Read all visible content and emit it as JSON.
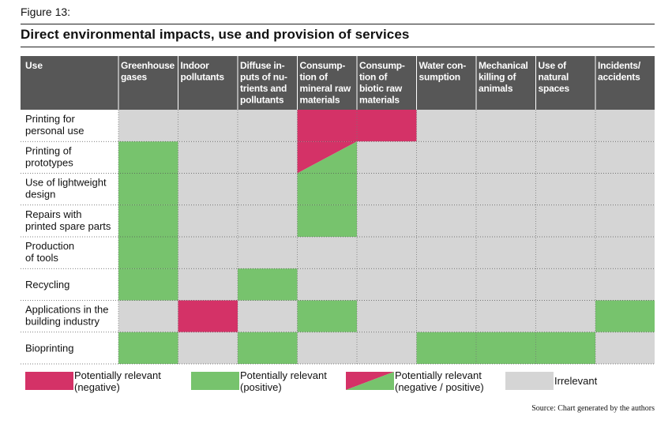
{
  "figure_label": "Figure 13:",
  "colors": {
    "header_bg": "#575757",
    "negative": "#d43267",
    "positive": "#77c36d",
    "irrelevant": "#d5d5d5"
  },
  "chart_data": {
    "type": "table",
    "title": "Direct environmental impacts, use and provision of services",
    "row_header": "Use",
    "columns": [
      "Greenhouse\ngases",
      "Indoor\npollutants",
      "Diffuse in-\nputs of nu-\ntrients and\npollutants",
      "Consump-\ntion of\nmineral raw\nmaterials",
      "Consump-\ntion of\nbiotic raw\nmaterials",
      "Water con-\nsumption",
      "Mechanical\nkilling of\nanimals",
      "Use of\nnatural\nspaces",
      "Incidents/\naccidents"
    ],
    "rows": [
      {
        "label": "Printing for\npersonal use",
        "cells": [
          "irrelevant",
          "irrelevant",
          "irrelevant",
          "negative",
          "negative",
          "irrelevant",
          "irrelevant",
          "irrelevant",
          "irrelevant"
        ]
      },
      {
        "label": "Printing of\nprototypes",
        "cells": [
          "positive",
          "irrelevant",
          "irrelevant",
          "mixed",
          "irrelevant",
          "irrelevant",
          "irrelevant",
          "irrelevant",
          "irrelevant"
        ]
      },
      {
        "label": "Use of lightweight\ndesign",
        "cells": [
          "positive",
          "irrelevant",
          "irrelevant",
          "positive",
          "irrelevant",
          "irrelevant",
          "irrelevant",
          "irrelevant",
          "irrelevant"
        ]
      },
      {
        "label": "Repairs with\nprinted spare parts",
        "cells": [
          "positive",
          "irrelevant",
          "irrelevant",
          "positive",
          "irrelevant",
          "irrelevant",
          "irrelevant",
          "irrelevant",
          "irrelevant"
        ]
      },
      {
        "label": "Production\nof tools",
        "cells": [
          "positive",
          "irrelevant",
          "irrelevant",
          "irrelevant",
          "irrelevant",
          "irrelevant",
          "irrelevant",
          "irrelevant",
          "irrelevant"
        ]
      },
      {
        "label": "Recycling",
        "cells": [
          "positive",
          "irrelevant",
          "positive",
          "irrelevant",
          "irrelevant",
          "irrelevant",
          "irrelevant",
          "irrelevant",
          "irrelevant"
        ]
      },
      {
        "label": "Applications in the\nbuilding industry",
        "cells": [
          "irrelevant",
          "negative",
          "irrelevant",
          "positive",
          "irrelevant",
          "irrelevant",
          "irrelevant",
          "irrelevant",
          "positive"
        ]
      },
      {
        "label": "Bioprinting",
        "cells": [
          "positive",
          "irrelevant",
          "positive",
          "irrelevant",
          "irrelevant",
          "positive",
          "positive",
          "positive",
          "irrelevant"
        ]
      }
    ],
    "legend": [
      {
        "key": "negative",
        "label": "Potentially relevant\n(negative)"
      },
      {
        "key": "positive",
        "label": "Potentially relevant\n(positive)"
      },
      {
        "key": "mixed",
        "label": "Potentially relevant\n(negative / positive)"
      },
      {
        "key": "irrelevant",
        "label": "Irrelevant"
      }
    ]
  },
  "source": "Source: Chart generated by the authors"
}
